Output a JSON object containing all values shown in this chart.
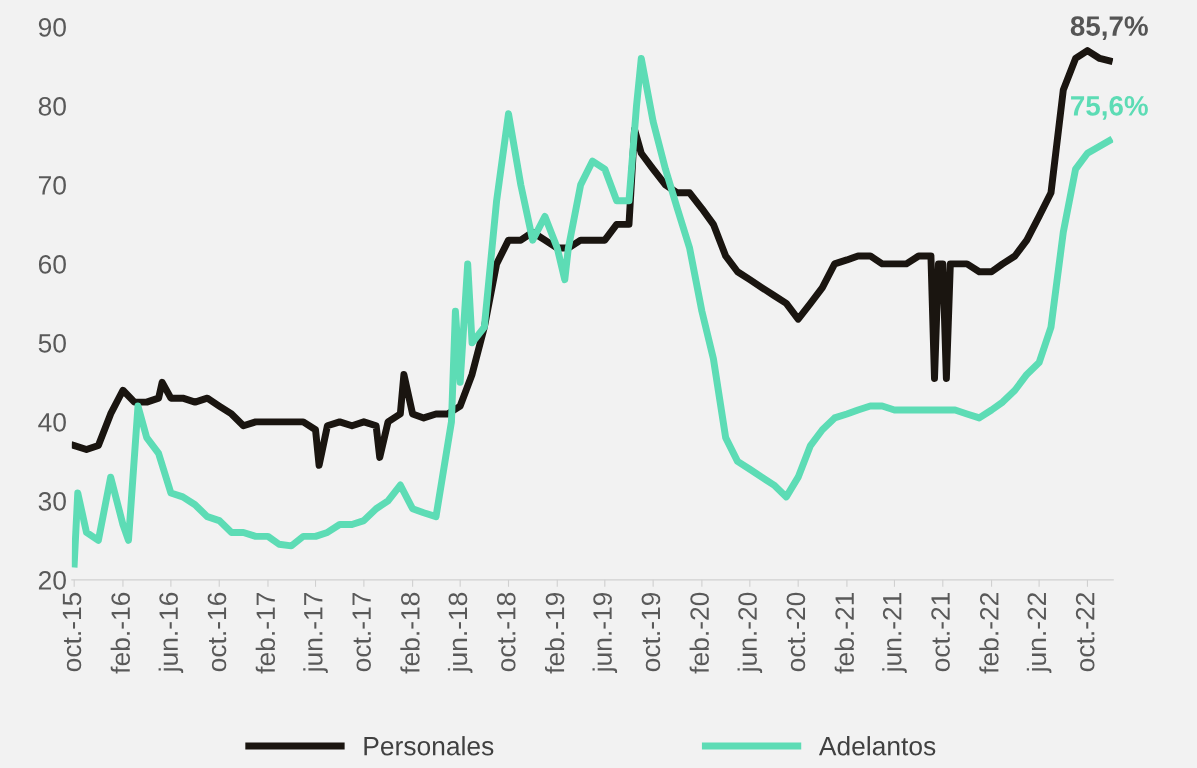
{
  "chart_data": {
    "type": "line",
    "legend": "bottom",
    "grid": false,
    "marker": "none",
    "line_style": "solid",
    "ylim": [
      20,
      90
    ],
    "yticks": [
      20,
      30,
      40,
      50,
      60,
      70,
      80,
      90
    ],
    "xlim": [
      "2015-09-25",
      "2022-12-05"
    ],
    "xticks": [
      {
        "value": "2015-10-01",
        "label": "oct.-15"
      },
      {
        "value": "2016-02-01",
        "label": "feb.-16"
      },
      {
        "value": "2016-06-01",
        "label": "jun.-16"
      },
      {
        "value": "2016-10-01",
        "label": "oct.-16"
      },
      {
        "value": "2017-02-01",
        "label": "feb.-17"
      },
      {
        "value": "2017-06-01",
        "label": "jun.-17"
      },
      {
        "value": "2017-10-01",
        "label": "oct.-17"
      },
      {
        "value": "2018-02-01",
        "label": "feb.-18"
      },
      {
        "value": "2018-06-01",
        "label": "jun.-18"
      },
      {
        "value": "2018-10-01",
        "label": "oct.-18"
      },
      {
        "value": "2019-02-01",
        "label": "feb.-19"
      },
      {
        "value": "2019-06-01",
        "label": "jun.-19"
      },
      {
        "value": "2019-10-01",
        "label": "oct.-19"
      },
      {
        "value": "2020-02-01",
        "label": "feb.-20"
      },
      {
        "value": "2020-06-01",
        "label": "jun.-20"
      },
      {
        "value": "2020-10-01",
        "label": "oct.-20"
      },
      {
        "value": "2021-02-01",
        "label": "feb.-21"
      },
      {
        "value": "2021-06-01",
        "label": "jun.-21"
      },
      {
        "value": "2021-10-01",
        "label": "oct.-21"
      },
      {
        "value": "2022-02-01",
        "label": "feb.-22"
      },
      {
        "value": "2022-06-01",
        "label": "jun.-22"
      },
      {
        "value": "2022-10-01",
        "label": "oct.-22"
      }
    ],
    "series": [
      {
        "name": "Personales",
        "color": "#1a1510",
        "x": [
          "2015-10-01",
          "2015-11-01",
          "2015-12-01",
          "2016-01-01",
          "2016-02-01",
          "2016-03-01",
          "2016-04-01",
          "2016-05-01",
          "2016-05-10",
          "2016-06-01",
          "2016-07-01",
          "2016-08-01",
          "2016-09-01",
          "2016-10-01",
          "2016-11-01",
          "2016-12-01",
          "2017-01-01",
          "2017-02-01",
          "2017-03-01",
          "2017-04-01",
          "2017-05-01",
          "2017-06-01",
          "2017-06-10",
          "2017-07-01",
          "2017-08-01",
          "2017-09-01",
          "2017-10-01",
          "2017-11-01",
          "2017-11-10",
          "2017-12-01",
          "2018-01-01",
          "2018-01-10",
          "2018-02-01",
          "2018-03-01",
          "2018-04-01",
          "2018-05-01",
          "2018-06-01",
          "2018-07-01",
          "2018-08-01",
          "2018-09-01",
          "2018-10-01",
          "2018-11-01",
          "2018-12-01",
          "2019-01-01",
          "2019-02-01",
          "2019-03-01",
          "2019-04-01",
          "2019-05-01",
          "2019-06-01",
          "2019-07-01",
          "2019-08-01",
          "2019-08-15",
          "2019-09-01",
          "2019-10-01",
          "2019-11-01",
          "2019-12-01",
          "2020-01-01",
          "2020-02-01",
          "2020-03-01",
          "2020-04-01",
          "2020-05-01",
          "2020-06-01",
          "2020-07-01",
          "2020-08-01",
          "2020-09-01",
          "2020-10-01",
          "2020-11-01",
          "2020-12-01",
          "2021-01-01",
          "2021-02-01",
          "2021-03-01",
          "2021-04-01",
          "2021-05-01",
          "2021-06-01",
          "2021-07-01",
          "2021-08-01",
          "2021-09-01",
          "2021-09-10",
          "2021-09-20",
          "2021-10-01",
          "2021-10-10",
          "2021-10-20",
          "2021-11-01",
          "2021-12-01",
          "2022-01-01",
          "2022-02-01",
          "2022-03-01",
          "2022-04-01",
          "2022-05-01",
          "2022-06-01",
          "2022-07-01",
          "2022-08-01",
          "2022-09-01",
          "2022-10-01",
          "2022-11-01",
          "2022-11-25"
        ],
        "values": [
          37,
          36.5,
          37,
          41,
          44,
          42.5,
          42.5,
          43,
          45,
          43,
          43,
          42.5,
          43,
          42,
          41,
          39.5,
          40,
          40,
          40,
          40,
          40,
          39,
          34.5,
          39.5,
          40,
          39.5,
          40,
          39.5,
          35.5,
          40,
          41,
          46,
          41,
          40.5,
          41,
          41,
          42,
          46,
          52,
          60,
          63,
          63,
          64,
          63,
          62,
          62,
          63,
          63,
          63,
          65,
          65,
          77,
          74,
          72,
          70,
          69,
          69,
          67,
          65,
          61,
          59,
          58,
          57,
          56,
          55,
          53,
          55,
          57,
          60,
          60.5,
          61,
          61,
          60,
          60,
          60,
          61,
          61,
          45.5,
          60,
          60,
          45.5,
          60,
          60,
          60,
          59,
          59,
          60,
          61,
          63,
          66,
          69,
          82,
          86,
          87,
          86,
          85.7
        ]
      },
      {
        "name": "Adelantos",
        "color": "#5ddcb5",
        "x": [
          "2015-10-01",
          "2015-10-10",
          "2015-11-01",
          "2015-12-01",
          "2016-01-01",
          "2016-02-01",
          "2016-02-15",
          "2016-03-10",
          "2016-04-01",
          "2016-05-01",
          "2016-06-01",
          "2016-07-01",
          "2016-08-01",
          "2016-09-01",
          "2016-10-01",
          "2016-11-01",
          "2016-12-01",
          "2017-01-01",
          "2017-02-01",
          "2017-03-01",
          "2017-04-01",
          "2017-05-01",
          "2017-06-01",
          "2017-07-01",
          "2017-08-01",
          "2017-09-01",
          "2017-10-01",
          "2017-11-01",
          "2017-12-01",
          "2018-01-01",
          "2018-02-01",
          "2018-03-01",
          "2018-04-01",
          "2018-05-10",
          "2018-05-20",
          "2018-06-01",
          "2018-06-20",
          "2018-07-01",
          "2018-08-01",
          "2018-09-01",
          "2018-10-01",
          "2018-11-01",
          "2018-12-01",
          "2019-01-01",
          "2019-02-01",
          "2019-02-20",
          "2019-03-01",
          "2019-04-01",
          "2019-05-01",
          "2019-06-01",
          "2019-07-01",
          "2019-08-01",
          "2019-08-20",
          "2019-09-01",
          "2019-10-01",
          "2019-11-01",
          "2019-12-01",
          "2020-01-01",
          "2020-02-01",
          "2020-03-01",
          "2020-04-01",
          "2020-05-01",
          "2020-06-01",
          "2020-07-01",
          "2020-08-01",
          "2020-09-01",
          "2020-10-01",
          "2020-11-01",
          "2020-12-01",
          "2021-01-01",
          "2021-02-01",
          "2021-03-01",
          "2021-04-01",
          "2021-05-01",
          "2021-06-01",
          "2021-07-01",
          "2021-08-01",
          "2021-09-01",
          "2021-10-01",
          "2021-11-01",
          "2021-12-01",
          "2022-01-01",
          "2022-02-01",
          "2022-03-01",
          "2022-04-01",
          "2022-05-01",
          "2022-06-01",
          "2022-07-01",
          "2022-08-01",
          "2022-09-01",
          "2022-10-01",
          "2022-11-25"
        ],
        "values": [
          22,
          31,
          26,
          25,
          33,
          27,
          25,
          42,
          38,
          36,
          31,
          30.5,
          29.5,
          28,
          27.5,
          26,
          26,
          25.5,
          25.5,
          24.5,
          24.3,
          25.5,
          25.5,
          26,
          27,
          27,
          27.5,
          29,
          30,
          32,
          29,
          28.5,
          28,
          40,
          54,
          45,
          60,
          50,
          52,
          68,
          79,
          70,
          63,
          66,
          62,
          58,
          62,
          70,
          73,
          72,
          68,
          68,
          80,
          86,
          78,
          72,
          67,
          62,
          54,
          48,
          38,
          35,
          34,
          33,
          32,
          30.5,
          33,
          37,
          39,
          40.5,
          41,
          41.5,
          42,
          42,
          41.5,
          41.5,
          41.5,
          41.5,
          41.5,
          41.5,
          41,
          40.5,
          41.5,
          42.5,
          44,
          46,
          47.5,
          52,
          64,
          72,
          74,
          75.6
        ]
      }
    ],
    "annotations": [
      {
        "text": "85,7%",
        "x": "2022-11-25",
        "y": 85.7
      },
      {
        "text": "75,6%",
        "x": "2022-11-25",
        "y": 75.6
      }
    ]
  }
}
